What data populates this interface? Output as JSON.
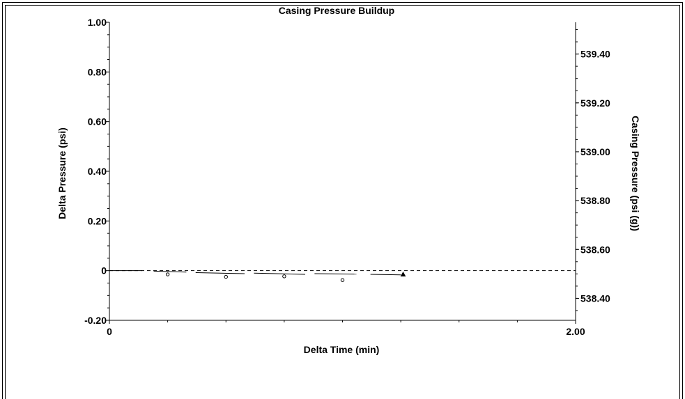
{
  "chart_data": {
    "type": "scatter",
    "title": "Casing Pressure Buildup",
    "xlabel": "Delta Time (min)",
    "ylabel_left": "Delta Pressure (psi)",
    "ylabel_right": "Casing Pressure (psi (g))",
    "xlim": [
      0,
      2.0
    ],
    "ylim_left": [
      -0.2,
      1.0
    ],
    "ylim_right": [
      538.31,
      539.53
    ],
    "x_ticks": [
      {
        "value": 0,
        "label": "0"
      },
      {
        "value": 2.0,
        "label": "2.00"
      }
    ],
    "y_left_ticks": [
      {
        "value": -0.2,
        "label": "-0.20"
      },
      {
        "value": 0,
        "label": "0"
      },
      {
        "value": 0.2,
        "label": "0.20"
      },
      {
        "value": 0.4,
        "label": "0.40"
      },
      {
        "value": 0.6,
        "label": "0.60"
      },
      {
        "value": 0.8,
        "label": "0.80"
      },
      {
        "value": 1.0,
        "label": "1.00"
      }
    ],
    "y_right_ticks": [
      {
        "value": 538.4,
        "label": "538.40"
      },
      {
        "value": 538.6,
        "label": "538.60"
      },
      {
        "value": 538.8,
        "label": "538.80"
      },
      {
        "value": 539.0,
        "label": "539.00"
      },
      {
        "value": 539.2,
        "label": "539.20"
      },
      {
        "value": 539.4,
        "label": "539.40"
      }
    ],
    "reference_line": {
      "y": 0,
      "style": "dashed"
    },
    "series": [
      {
        "marker": "circle",
        "x": [
          0.25,
          0.5,
          0.75,
          1.0
        ],
        "y": [
          -0.015,
          -0.025,
          -0.023,
          -0.038
        ]
      },
      {
        "marker": "triangle",
        "x": [
          1.26
        ],
        "y": [
          -0.015
        ]
      },
      {
        "marker": "segment",
        "segments": [
          [
            0.0,
            0.0,
            0.14,
            0.0
          ],
          [
            0.19,
            -0.002,
            0.33,
            -0.006
          ],
          [
            0.37,
            -0.008,
            0.58,
            -0.012
          ],
          [
            0.62,
            -0.01,
            0.84,
            -0.015
          ],
          [
            0.88,
            -0.012,
            1.06,
            -0.014
          ],
          [
            1.12,
            -0.015,
            1.25,
            -0.017
          ]
        ]
      }
    ],
    "grid": false,
    "legend": "none"
  }
}
